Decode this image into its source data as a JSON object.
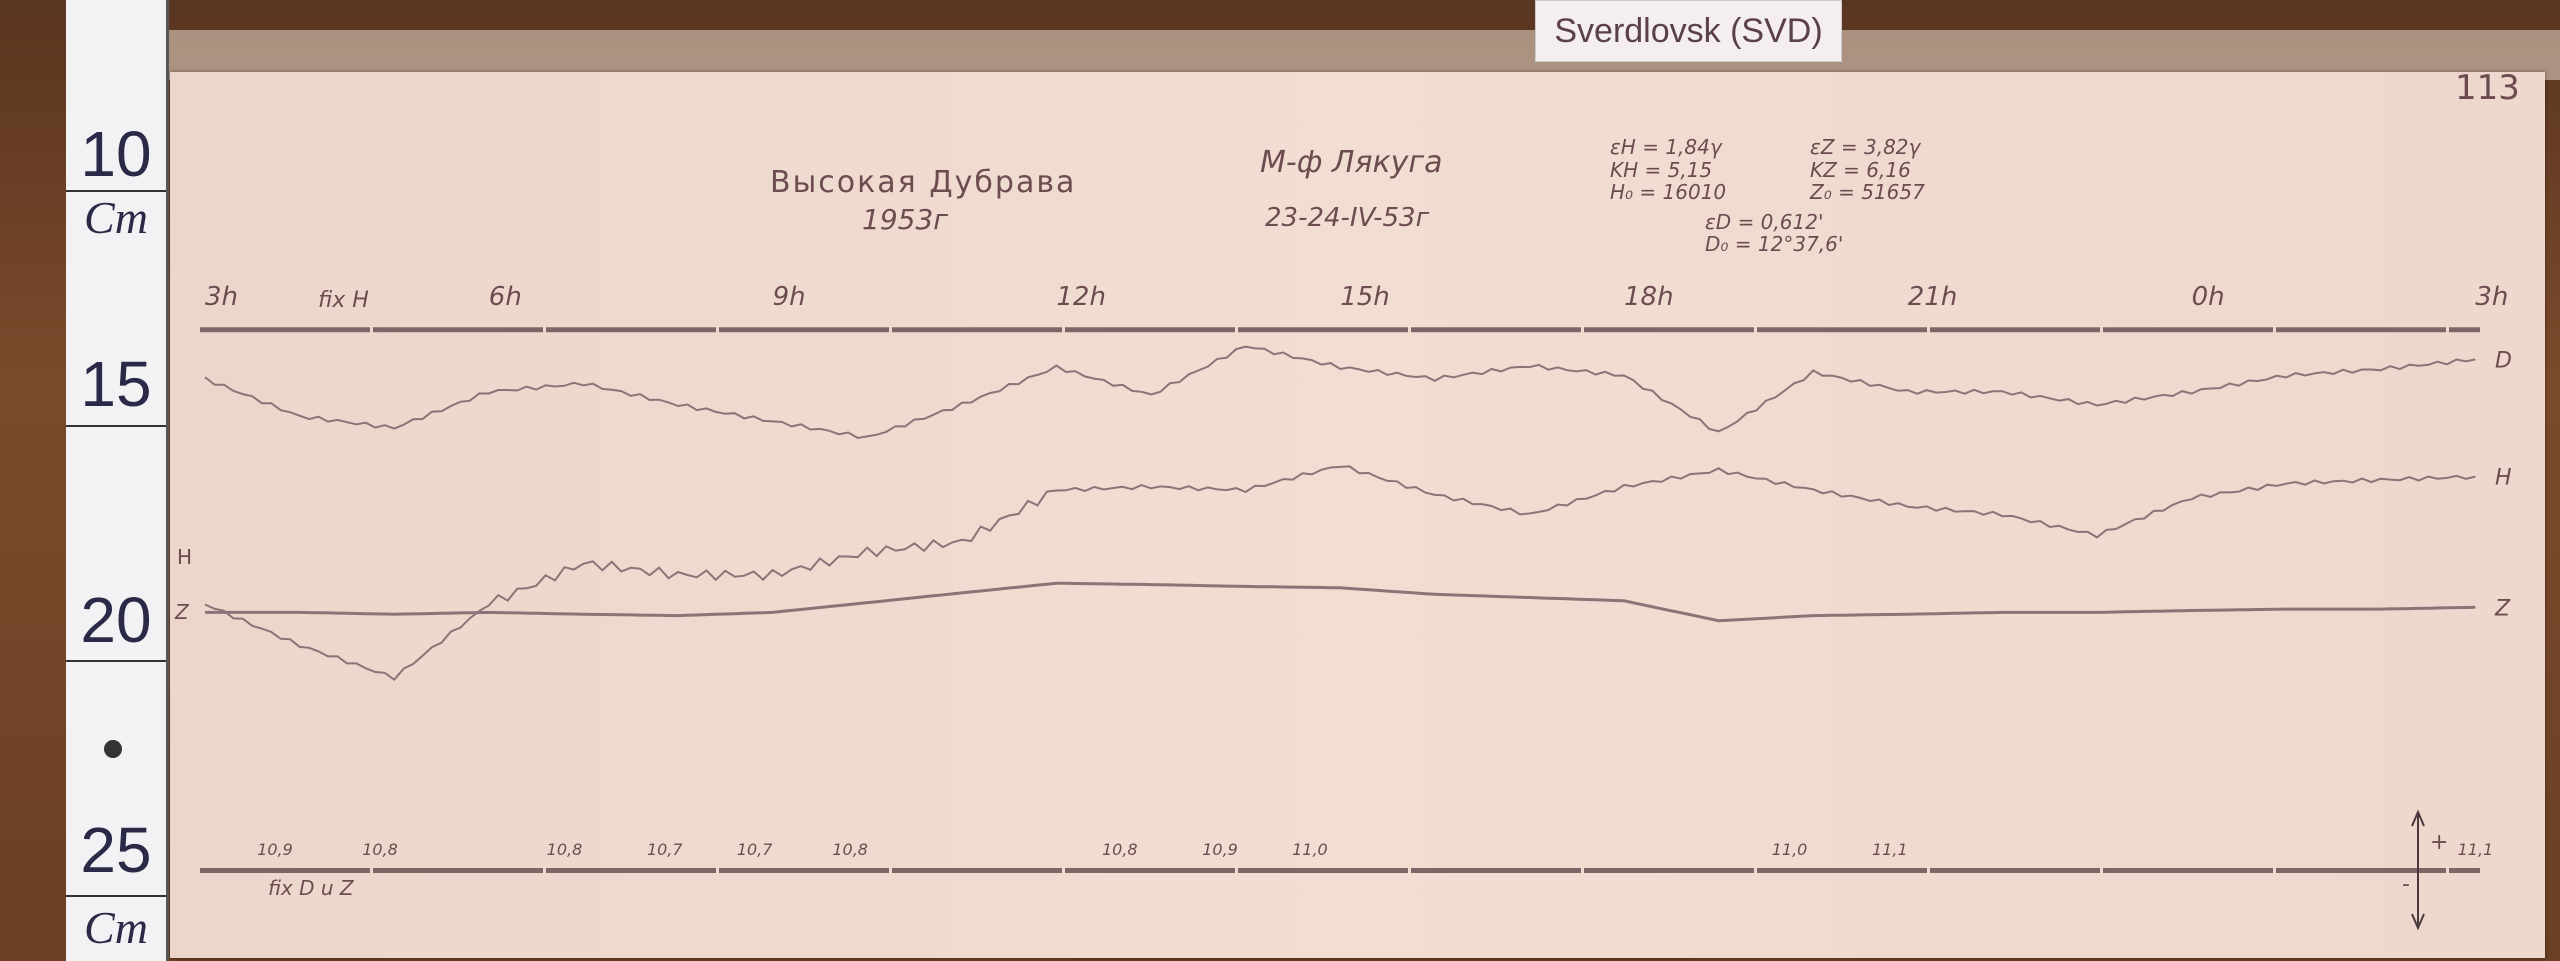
{
  "station_label": "Sverdlovsk (SVD)",
  "sheet_number": "113",
  "ruler": {
    "marks": [
      "10",
      "15",
      "20",
      "25"
    ],
    "unit": "Cm"
  },
  "header": {
    "station": "Высокая Дубрава",
    "year": "1953г",
    "instrument": "М-ф Лякуга",
    "date": "23-24-IV-53г",
    "constants": {
      "eps_h": "εH = 1,84γ",
      "k_h": "KH = 5,15",
      "h0": "H₀ = 16010",
      "eps_z": "εZ = 3,82γ",
      "k_z": "KZ = 6,16",
      "z0": "Z₀ = 51657",
      "eps_d": "εD = 0,612'",
      "d0": "D₀ = 12°37,6'"
    }
  },
  "fix_h_label": "fix H",
  "fix_dz_label": "fix D u Z",
  "left_labels": {
    "h": "H",
    "z": "Z"
  },
  "polarity": {
    "plus": "+",
    "minus": "-"
  },
  "chart_data": {
    "type": "line",
    "title": "",
    "xlabel": "",
    "ylabel": "Cm",
    "x_unit": "hours",
    "xlim": [
      3,
      27
    ],
    "ylim": [
      10,
      25
    ],
    "grid": false,
    "legend": "right-end labels",
    "tick_labels": [
      {
        "hour": 3,
        "label": "3h"
      },
      {
        "hour": 6,
        "label": "6h"
      },
      {
        "hour": 9,
        "label": "9h"
      },
      {
        "hour": 12,
        "label": "12h"
      },
      {
        "hour": 15,
        "label": "15h"
      },
      {
        "hour": 18,
        "label": "18h"
      },
      {
        "hour": 21,
        "label": "21h"
      },
      {
        "hour": 24,
        "label": "0h"
      },
      {
        "hour": 27,
        "label": "3h"
      }
    ],
    "x": [
      3,
      4,
      5,
      6,
      7,
      8,
      9,
      10,
      11,
      12,
      13,
      14,
      15,
      16,
      17,
      18,
      19,
      20,
      21,
      22,
      23,
      24,
      25,
      26,
      27
    ],
    "series": [
      {
        "name": "D",
        "values": [
          14.83,
          15.64,
          15.89,
          15.11,
          14.93,
          15.39,
          15.75,
          16.1,
          15.39,
          14.58,
          15.18,
          14.12,
          14.58,
          14.83,
          14.55,
          14.76,
          15.99,
          14.69,
          15.11,
          15.11,
          15.39,
          15.11,
          14.76,
          14.62,
          14.41
        ]
      },
      {
        "name": "H",
        "values": [
          19.69,
          20.58,
          21.28,
          19.69,
          18.81,
          19.06,
          19.06,
          18.57,
          18.35,
          17.23,
          17.16,
          17.23,
          16.7,
          17.33,
          17.76,
          17.16,
          16.8,
          17.23,
          17.58,
          17.76,
          18.21,
          17.4,
          17.09,
          17.01,
          16.94
        ]
      },
      {
        "name": "Z",
        "values": [
          19.87,
          19.87,
          19.91,
          19.87,
          19.91,
          19.94,
          19.87,
          19.66,
          19.45,
          19.24,
          19.27,
          19.31,
          19.34,
          19.48,
          19.55,
          19.62,
          20.05,
          19.94,
          19.91,
          19.87,
          19.87,
          19.83,
          19.8,
          19.8,
          19.76
        ]
      }
    ],
    "baselines": [
      13.77,
      25.44
    ],
    "annotations": [
      {
        "hour": 3.74,
        "text": "10,9"
      },
      {
        "hour": 4.85,
        "text": "10,8"
      },
      {
        "hour": 6.8,
        "text": "10,8"
      },
      {
        "hour": 7.86,
        "text": "10,7"
      },
      {
        "hour": 8.81,
        "text": "10,7"
      },
      {
        "hour": 9.82,
        "text": "10,8"
      },
      {
        "hour": 12.67,
        "text": "10,8"
      },
      {
        "hour": 13.73,
        "text": "10,9"
      },
      {
        "hour": 14.68,
        "text": "11,0"
      },
      {
        "hour": 19.75,
        "text": "11,0"
      },
      {
        "hour": 20.81,
        "text": "11,1"
      },
      {
        "hour": 27.0,
        "text": "11,1"
      }
    ],
    "colors": {
      "trace": "#8a7478",
      "baseline": "#7e6668",
      "ink": "#6d4c50"
    }
  }
}
